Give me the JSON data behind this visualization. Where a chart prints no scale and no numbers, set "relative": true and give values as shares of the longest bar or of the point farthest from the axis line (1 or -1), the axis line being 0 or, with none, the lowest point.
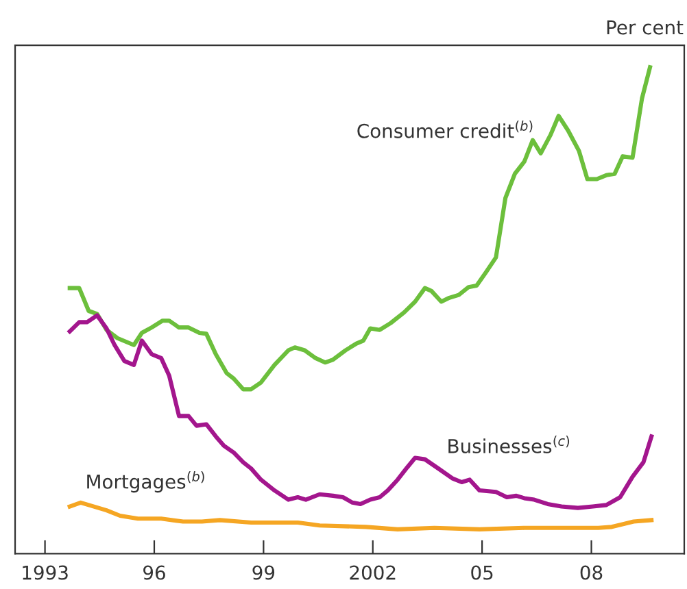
{
  "chart_data": {
    "type": "line",
    "relative": true,
    "ylabel": "Per cent",
    "grid": false,
    "legend": false,
    "marker": "none",
    "line_style": "solid",
    "xlim": [
      1992.18,
      2010.55
    ],
    "xticks": [
      {
        "value": 1993,
        "label": "1993"
      },
      {
        "value": 1996,
        "label": "96"
      },
      {
        "value": 1999,
        "label": "99"
      },
      {
        "value": 2002,
        "label": "2002"
      },
      {
        "value": 2005,
        "label": "05"
      },
      {
        "value": 2008,
        "label": "08"
      }
    ],
    "series": [
      {
        "name": "Consumer credit$^{(b)}$",
        "color": "#6cbf3c",
        "x": [
          1993.68,
          1993.94,
          1994.2,
          1994.43,
          1994.69,
          1994.99,
          1995.44,
          1995.66,
          1995.93,
          1996.23,
          1996.41,
          1996.68,
          1996.94,
          1997.24,
          1997.43,
          1997.69,
          1997.99,
          1998.18,
          1998.44,
          1998.66,
          1998.93,
          1999.3,
          1999.68,
          1999.86,
          2000.13,
          2000.43,
          2000.69,
          2000.91,
          2001.25,
          2001.55,
          2001.74,
          2001.93,
          2002.19,
          2002.49,
          2002.86,
          2003.16,
          2003.43,
          2003.61,
          2003.88,
          2004.1,
          2004.36,
          2004.63,
          2004.85,
          2005.11,
          2005.38,
          2005.64,
          2005.9,
          2006.16,
          2006.39,
          2006.61,
          2006.88,
          2007.1,
          2007.36,
          2007.66,
          2007.89,
          2008.15,
          2008.41,
          2008.64,
          2008.86,
          2009.13,
          2009.39,
          2009.61
        ],
        "values": [
          0.546,
          0.546,
          0.499,
          0.493,
          0.46,
          0.443,
          0.429,
          0.454,
          0.465,
          0.479,
          0.479,
          0.465,
          0.465,
          0.454,
          0.452,
          0.41,
          0.371,
          0.36,
          0.338,
          0.338,
          0.352,
          0.388,
          0.418,
          0.424,
          0.418,
          0.402,
          0.393,
          0.399,
          0.418,
          0.432,
          0.438,
          0.463,
          0.46,
          0.474,
          0.496,
          0.518,
          0.546,
          0.54,
          0.518,
          0.526,
          0.532,
          0.548,
          0.551,
          0.579,
          0.609,
          0.731,
          0.781,
          0.806,
          0.85,
          0.823,
          0.861,
          0.9,
          0.87,
          0.828,
          0.77,
          0.77,
          0.778,
          0.781,
          0.817,
          0.814,
          0.936,
          1.0
        ]
      },
      {
        "name": "Businesses$^{(c)}$",
        "color": "#a3168d",
        "x": [
          1993.68,
          1993.94,
          1994.16,
          1994.43,
          1994.69,
          1994.91,
          1995.18,
          1995.44,
          1995.66,
          1995.93,
          1996.19,
          1996.41,
          1996.68,
          1996.94,
          1997.16,
          1997.43,
          1997.69,
          1997.91,
          1998.18,
          1998.44,
          1998.66,
          1998.93,
          1999.3,
          1999.68,
          1999.94,
          2000.16,
          2000.54,
          2000.91,
          2001.18,
          2001.44,
          2001.66,
          2001.93,
          2002.19,
          2002.41,
          2002.68,
          2002.94,
          2003.16,
          2003.43,
          2003.8,
          2004.18,
          2004.44,
          2004.66,
          2004.93,
          2005.38,
          2005.68,
          2005.94,
          2006.16,
          2006.43,
          2006.8,
          2007.18,
          2007.63,
          2008.04,
          2008.41,
          2008.79,
          2009.13,
          2009.43,
          2009.65
        ],
        "values": [
          0.457,
          0.476,
          0.476,
          0.49,
          0.463,
          0.429,
          0.396,
          0.388,
          0.438,
          0.41,
          0.402,
          0.366,
          0.283,
          0.283,
          0.263,
          0.266,
          0.241,
          0.222,
          0.208,
          0.188,
          0.175,
          0.152,
          0.13,
          0.111,
          0.116,
          0.111,
          0.122,
          0.119,
          0.116,
          0.105,
          0.102,
          0.111,
          0.116,
          0.13,
          0.152,
          0.177,
          0.197,
          0.194,
          0.175,
          0.155,
          0.147,
          0.152,
          0.13,
          0.127,
          0.116,
          0.119,
          0.114,
          0.111,
          0.102,
          0.097,
          0.094,
          0.097,
          0.1,
          0.116,
          0.158,
          0.188,
          0.241
        ]
      },
      {
        "name": "Mortgages$^{(b)}$",
        "color": "#f5a623",
        "x": [
          1993.68,
          1993.98,
          1994.69,
          1995.06,
          1995.55,
          1996.19,
          1996.79,
          1997.31,
          1997.8,
          1998.66,
          1999.3,
          1999.94,
          2000.54,
          2001.81,
          2002.68,
          2003.69,
          2004.93,
          2006.16,
          2007.44,
          2008.19,
          2008.56,
          2009.16,
          2009.65
        ],
        "values": [
          0.097,
          0.105,
          0.089,
          0.078,
          0.072,
          0.072,
          0.066,
          0.066,
          0.069,
          0.064,
          0.064,
          0.064,
          0.058,
          0.055,
          0.05,
          0.053,
          0.05,
          0.053,
          0.053,
          0.053,
          0.055,
          0.066,
          0.069
        ]
      }
    ]
  }
}
